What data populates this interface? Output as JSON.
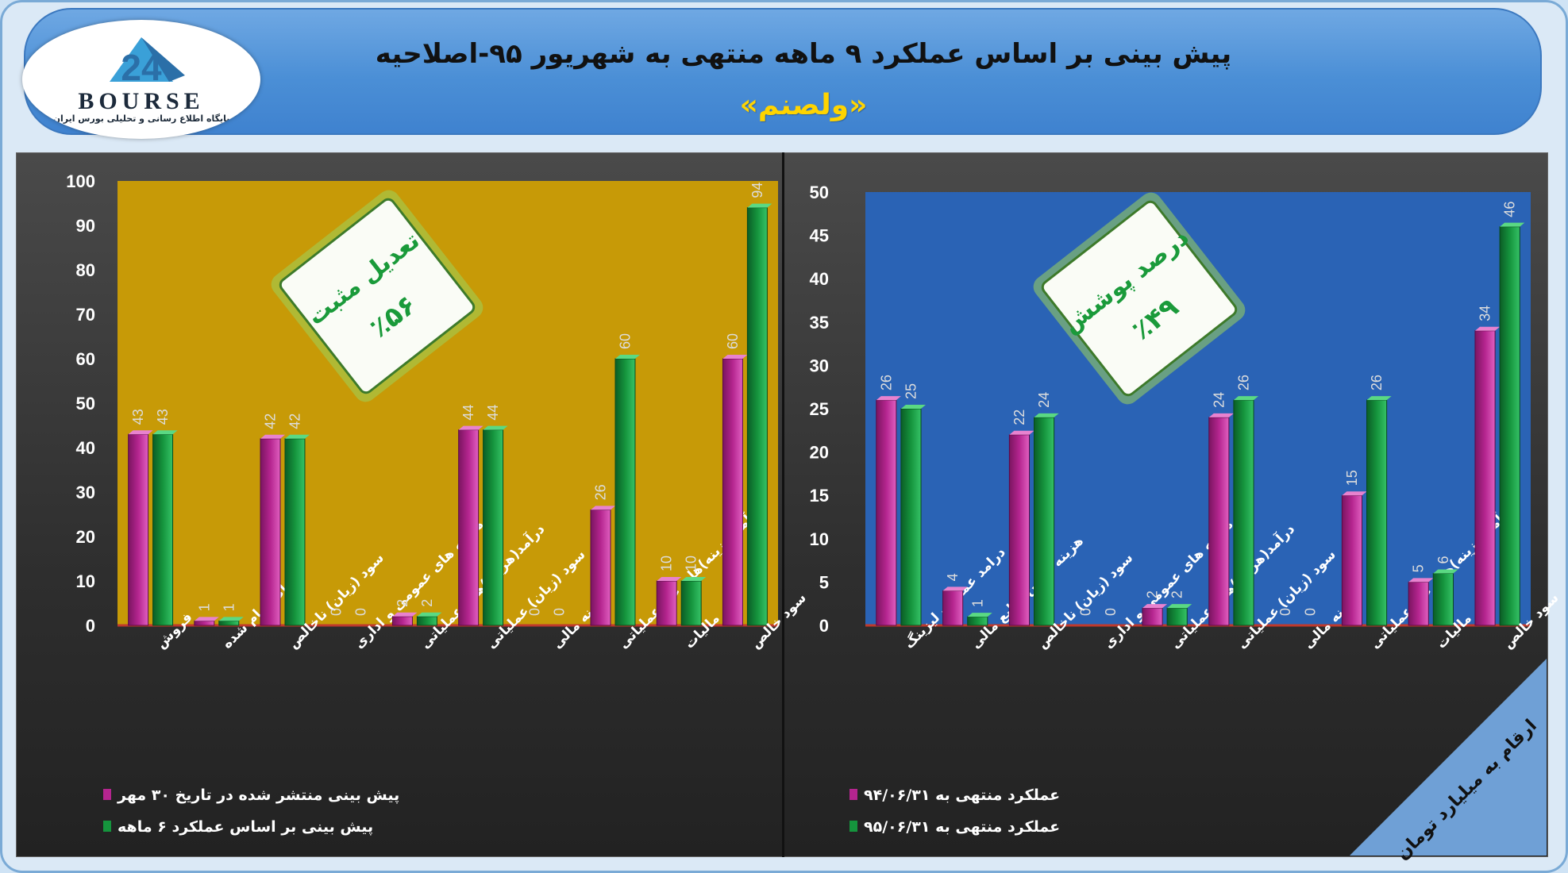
{
  "header": {
    "title": "پیش بینی بر اساس عملکرد ۹ ماهه منتهی به شهریور ۹۵-اصلاحیه",
    "subtitle": "«ولصنم»",
    "logo_word": "BOURSE",
    "logo_tagline": "پایگاه اطلاع رسانی و تحلیلی بورس ایران"
  },
  "corner_note": "ارقام به میلیارد تومان",
  "colors": {
    "series_a": "#b5258f",
    "series_b": "#15943d",
    "left_plot_bg": "#c79a07",
    "right_plot_bg": "#2a63b5"
  },
  "chart_data": [
    {
      "type": "bar",
      "badge": {
        "title": "تعدیل مثبت",
        "value": "٪۵۶"
      },
      "categories": [
        "فروش",
        "بهای تمام شده",
        "سود (زیان) ناخالص",
        "هزینه های عمومی و اداری",
        "درآمد(هزینه)های عملیاتی",
        "سود (زیان) عملیاتی",
        "هزینه مالی",
        "درآمد(هزینه)های غیر عملیاتی",
        "مالیات",
        "سود خالص"
      ],
      "series": [
        {
          "name": "پیش بینی منتشر شده در تاریخ ۳۰ مهر",
          "values": [
            43,
            1,
            42,
            0,
            2,
            44,
            0,
            26,
            10,
            60
          ]
        },
        {
          "name": "پیش بینی بر اساس عملکرد ۶ ماهه",
          "values": [
            43,
            1,
            42,
            0,
            2,
            44,
            0,
            60,
            10,
            94
          ]
        }
      ],
      "ylim": [
        0,
        100
      ],
      "yticks": [
        0,
        10,
        20,
        30,
        40,
        50,
        60,
        70,
        80,
        90,
        100
      ],
      "legend": "bottom-left",
      "grid": false
    },
    {
      "type": "bar",
      "badge": {
        "title": "درصد پوشش",
        "value": "٪۴۹"
      },
      "categories": [
        "درامد عملیات لیزینگ",
        "هزینه تامین منابع مالی",
        "سود (زیان) ناخالص",
        "هزینه های عمومی و اداری",
        "درآمد(هزینه)های عملیاتی",
        "سود (زیان) عملیاتی",
        "هزینه مالی",
        "درآمد(هزینه)های غیر عملیاتی",
        "مالیات",
        "سود خالص"
      ],
      "series": [
        {
          "name": "عملکرد منتهی به ۹۴/۰۶/۳۱",
          "values": [
            26,
            4,
            22,
            0,
            2,
            24,
            0,
            15,
            5,
            34
          ]
        },
        {
          "name": "عملکرد منتهی به ۹۵/۰۶/۳۱",
          "values": [
            25,
            1,
            24,
            0,
            2,
            26,
            0,
            26,
            6,
            46
          ]
        }
      ],
      "ylim": [
        0,
        50
      ],
      "yticks": [
        0,
        5,
        10,
        15,
        20,
        25,
        30,
        35,
        40,
        45,
        50
      ],
      "legend": "bottom-left",
      "grid": false
    }
  ]
}
